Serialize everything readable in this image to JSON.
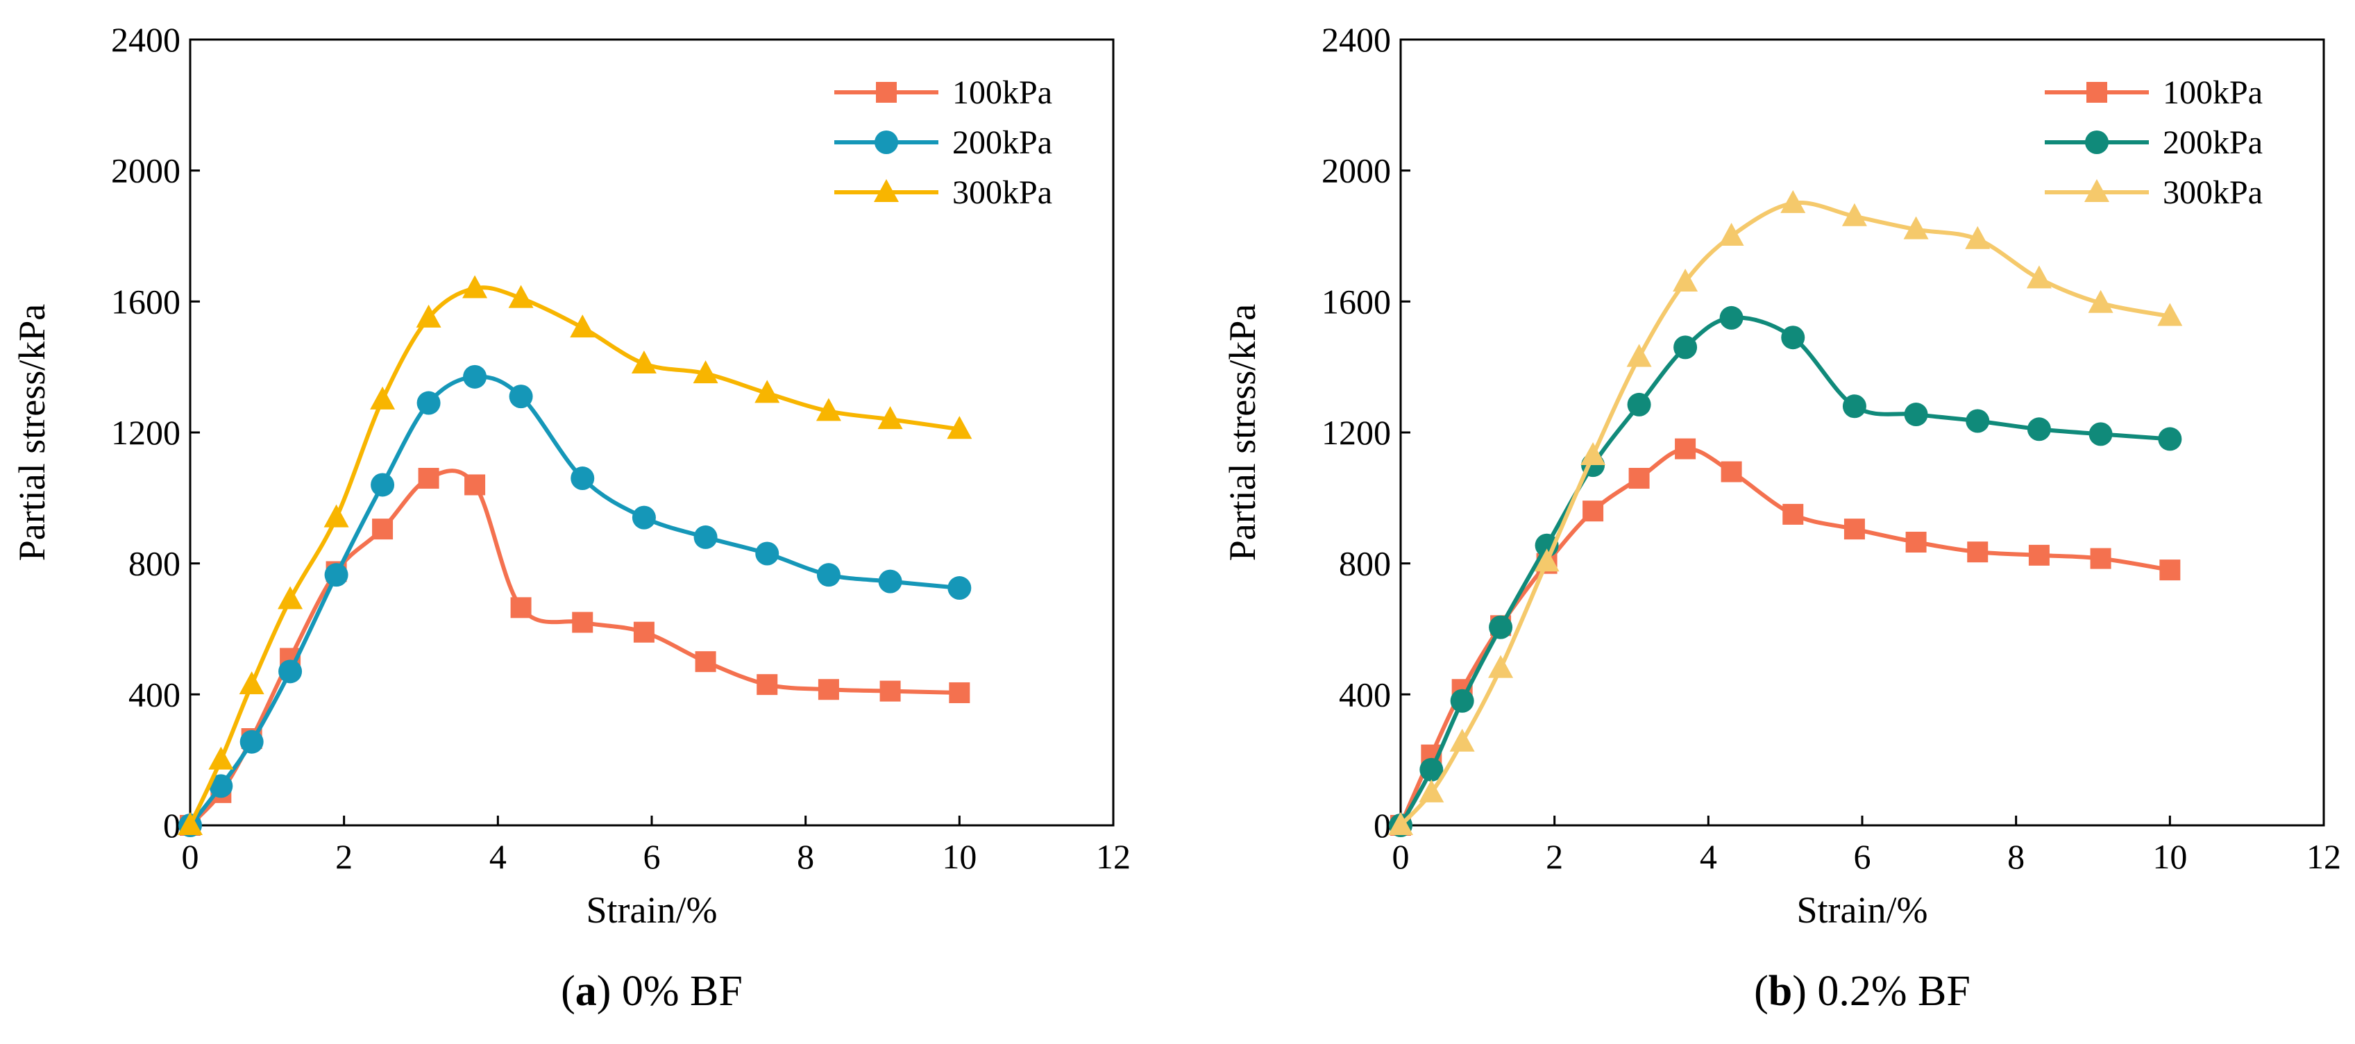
{
  "chart_data": [
    {
      "type": "line",
      "panel_letter": "a",
      "caption": "0% BF",
      "xlabel": "Strain/%",
      "ylabel": "Partial stress/kPa",
      "xlim": [
        0,
        12
      ],
      "ylim": [
        0,
        2400
      ],
      "xticks": [
        0,
        2,
        4,
        6,
        8,
        10,
        12
      ],
      "yticks": [
        0,
        400,
        800,
        1200,
        1600,
        2000,
        2400
      ],
      "legend_position": "top-right",
      "series": [
        {
          "name": "100kPa",
          "marker": "square",
          "color": "#f4714f",
          "x": [
            0,
            0.4,
            0.8,
            1.3,
            1.9,
            2.5,
            3.1,
            3.7,
            4.3,
            5.1,
            5.9,
            6.7,
            7.5,
            8.3,
            9.1,
            10
          ],
          "y": [
            0,
            100,
            265,
            510,
            775,
            905,
            1060,
            1040,
            665,
            620,
            590,
            500,
            430,
            415,
            410,
            405
          ]
        },
        {
          "name": "200kPa",
          "marker": "circle",
          "color": "#1597b8",
          "x": [
            0,
            0.4,
            0.8,
            1.3,
            1.9,
            2.5,
            3.1,
            3.7,
            4.3,
            5.1,
            5.9,
            6.7,
            7.5,
            8.3,
            9.1,
            10
          ],
          "y": [
            0,
            120,
            255,
            470,
            765,
            1040,
            1290,
            1370,
            1310,
            1060,
            940,
            880,
            830,
            765,
            745,
            725
          ]
        },
        {
          "name": "300kPa",
          "marker": "triangle",
          "color": "#f8b500",
          "x": [
            0,
            0.4,
            0.8,
            1.3,
            1.9,
            2.5,
            3.1,
            3.7,
            4.3,
            5.1,
            5.9,
            6.7,
            7.5,
            8.3,
            9.1,
            10
          ],
          "y": [
            0,
            200,
            430,
            690,
            940,
            1300,
            1550,
            1640,
            1610,
            1520,
            1410,
            1380,
            1320,
            1265,
            1240,
            1210
          ]
        }
      ]
    },
    {
      "type": "line",
      "panel_letter": "b",
      "caption": "0.2% BF",
      "xlabel": "Strain/%",
      "ylabel": "Partial stress/kPa",
      "xlim": [
        0,
        12
      ],
      "ylim": [
        0,
        2400
      ],
      "xticks": [
        0,
        2,
        4,
        6,
        8,
        10,
        12
      ],
      "yticks": [
        0,
        400,
        800,
        1200,
        1600,
        2000,
        2400
      ],
      "legend_position": "top-right",
      "series": [
        {
          "name": "100kPa",
          "marker": "square",
          "color": "#f4714f",
          "x": [
            0,
            0.4,
            0.8,
            1.3,
            1.9,
            2.5,
            3.1,
            3.7,
            4.3,
            5.1,
            5.9,
            6.7,
            7.5,
            8.3,
            9.1,
            10
          ],
          "y": [
            0,
            215,
            415,
            610,
            800,
            960,
            1060,
            1150,
            1080,
            950,
            905,
            865,
            835,
            825,
            815,
            780
          ]
        },
        {
          "name": "200kPa",
          "marker": "circle",
          "color": "#108a7a",
          "x": [
            0,
            0.4,
            0.8,
            1.3,
            1.9,
            2.5,
            3.1,
            3.7,
            4.3,
            5.1,
            5.9,
            6.7,
            7.5,
            8.3,
            9.1,
            10
          ],
          "y": [
            0,
            170,
            380,
            605,
            855,
            1100,
            1285,
            1460,
            1550,
            1490,
            1280,
            1255,
            1235,
            1210,
            1195,
            1180
          ]
        },
        {
          "name": "300kPa",
          "marker": "triangle",
          "color": "#f5c96b",
          "x": [
            0,
            0.4,
            0.8,
            1.3,
            1.9,
            2.5,
            3.1,
            3.7,
            4.3,
            5.1,
            5.9,
            6.7,
            7.5,
            8.3,
            9.1,
            10
          ],
          "y": [
            0,
            100,
            255,
            480,
            805,
            1130,
            1430,
            1660,
            1800,
            1900,
            1860,
            1820,
            1790,
            1670,
            1595,
            1555
          ]
        }
      ]
    }
  ]
}
